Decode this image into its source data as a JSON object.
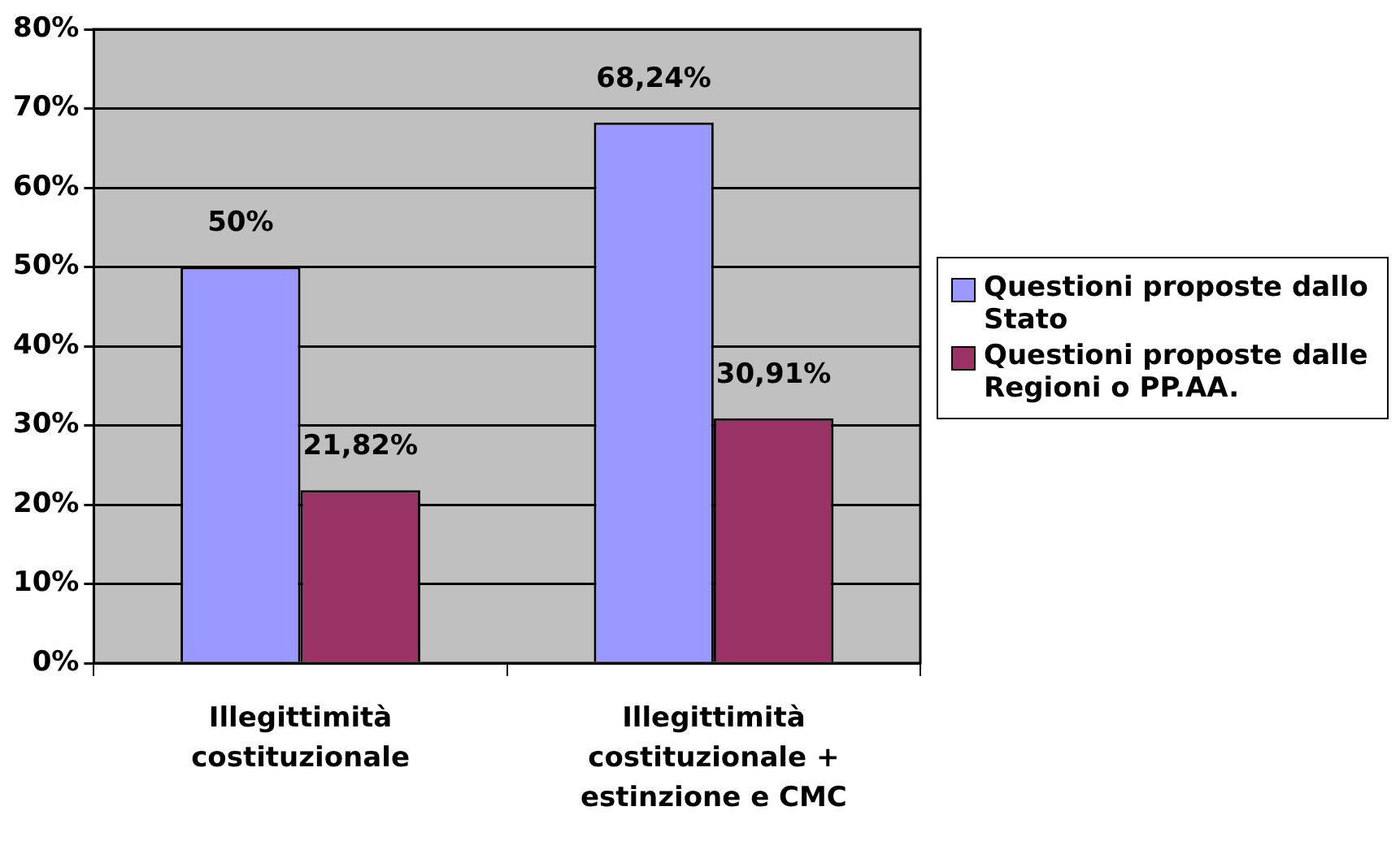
{
  "chart_data": {
    "type": "bar",
    "categories": [
      "Illegittimità costituzionale",
      "Illegittimità costituzionale + estinzione e CMC"
    ],
    "series": [
      {
        "name": "Questioni proposte dallo Stato",
        "color": "#9999ff",
        "values": [
          50,
          68.24
        ],
        "value_labels": [
          "50%",
          "68,24%"
        ]
      },
      {
        "name": "Questioni proposte dalle Regioni o PP.AA.",
        "color": "#993366",
        "values": [
          21.82,
          30.91
        ],
        "value_labels": [
          "21,82%",
          "30,91%"
        ]
      }
    ],
    "ylim": [
      0,
      80
    ],
    "yticks": [
      {
        "value": 0,
        "label": "0%"
      },
      {
        "value": 10,
        "label": "10%"
      },
      {
        "value": 20,
        "label": "20%"
      },
      {
        "value": 30,
        "label": "30%"
      },
      {
        "value": 40,
        "label": "40%"
      },
      {
        "value": 50,
        "label": "50%"
      },
      {
        "value": 60,
        "label": "60%"
      },
      {
        "value": 70,
        "label": "70%"
      },
      {
        "value": 80,
        "label": "80%"
      }
    ],
    "grid": "y",
    "legend": "right"
  }
}
